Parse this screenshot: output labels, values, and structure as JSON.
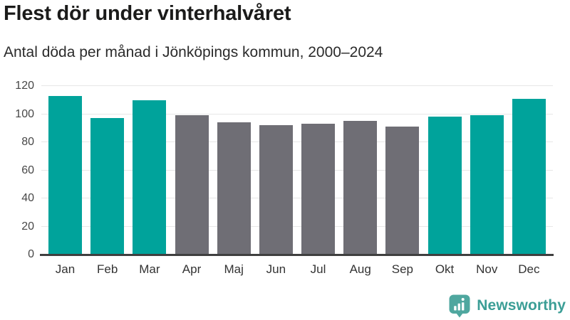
{
  "header": {
    "title": "Flest dör under vinterhalvåret",
    "subtitle": "Antal döda per månad i Jönköpings kommun, 2000–2024"
  },
  "chart_data": {
    "type": "bar",
    "categories": [
      "Jan",
      "Feb",
      "Mar",
      "Apr",
      "Maj",
      "Jun",
      "Jul",
      "Aug",
      "Sep",
      "Okt",
      "Nov",
      "Dec"
    ],
    "values": [
      113,
      97,
      110,
      99,
      94,
      92,
      93,
      95,
      91,
      98,
      99,
      111
    ],
    "bar_color_keys": [
      "teal",
      "teal",
      "teal",
      "gray",
      "gray",
      "gray",
      "gray",
      "gray",
      "gray",
      "teal",
      "teal",
      "teal"
    ],
    "colors": {
      "teal": "#00a39b",
      "gray": "#6f6e75"
    },
    "title": "Flest dör under vinterhalvåret",
    "subtitle": "Antal döda per månad i Jönköpings kommun, 2000–2024",
    "xlabel": "",
    "ylabel": "",
    "ylim": [
      0,
      120
    ],
    "yticks": [
      0,
      20,
      40,
      60,
      80,
      100,
      120
    ],
    "grid": true,
    "legend": "none",
    "gridline_color": "#e7e7e7",
    "baseline_color": "#3f3f3f"
  },
  "footer": {
    "brand_name": "Newsworthy",
    "brand_text_color": "#3b9e96",
    "brand_icon": "newsworthy-logo-icon",
    "brand_icon_color": "#4fa79f"
  }
}
